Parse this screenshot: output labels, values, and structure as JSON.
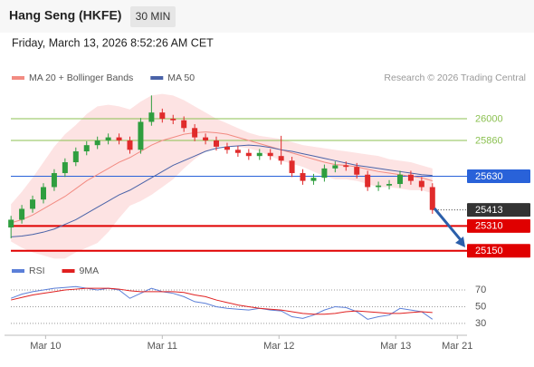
{
  "header": {
    "title": "Hang Seng (HKFE)",
    "interval": "30 MIN",
    "datetime": "Friday, March 13, 2026 8:52:26 AM CET"
  },
  "chart_data": [
    {
      "type": "candlestick",
      "credit": "Research © 2026 Trading Central",
      "up_color": "#2f9e3f",
      "down_color": "#e02b2b",
      "open": [
        25300,
        25350,
        25420,
        25480,
        25560,
        25650,
        25720,
        25790,
        25830,
        25860,
        25880,
        25860,
        25800,
        25980,
        26040,
        26000,
        25990,
        25940,
        25880,
        25860,
        25820,
        25800,
        25780,
        25760,
        25780,
        25760,
        25730,
        25650,
        25600,
        25620,
        25680,
        25700,
        25690,
        25640,
        25560,
        25570,
        25580,
        25640,
        25600,
        25560
      ],
      "high": [
        25375,
        25445,
        25505,
        25585,
        25675,
        25745,
        25815,
        25855,
        25885,
        25905,
        25905,
        25885,
        26005,
        26150,
        26065,
        26025,
        26015,
        25965,
        25905,
        25885,
        25845,
        25825,
        25805,
        25805,
        25805,
        25890,
        25755,
        25675,
        25645,
        25705,
        25725,
        25725,
        25715,
        25665,
        25595,
        25605,
        25665,
        25665,
        25625,
        25585
      ],
      "low": [
        25230,
        25325,
        25395,
        25455,
        25535,
        25625,
        25695,
        25765,
        25805,
        25835,
        25835,
        25775,
        25775,
        25955,
        25975,
        25965,
        25915,
        25855,
        25835,
        25795,
        25775,
        25755,
        25735,
        25735,
        25735,
        25705,
        25625,
        25575,
        25575,
        25595,
        25655,
        25665,
        25615,
        25535,
        25535,
        25545,
        25555,
        25575,
        25535,
        25388
      ],
      "close": [
        25350,
        25420,
        25480,
        25560,
        25650,
        25720,
        25790,
        25830,
        25860,
        25880,
        25860,
        25800,
        25980,
        26040,
        26000,
        25990,
        25940,
        25880,
        25860,
        25820,
        25800,
        25780,
        25760,
        25780,
        25760,
        25730,
        25650,
        25600,
        25620,
        25680,
        25700,
        25690,
        25640,
        25560,
        25570,
        25580,
        25640,
        25600,
        25560,
        25413
      ],
      "overlays": [
        {
          "name": "MA 20 + Bollinger Bands",
          "color": "#f28b82",
          "band_color": "#fde3e3",
          "values": [
            25330,
            25350,
            25380,
            25420,
            25460,
            25500,
            25550,
            25600,
            25640,
            25680,
            25720,
            25750,
            25790,
            25830,
            25860,
            25880,
            25900,
            25910,
            25915,
            25910,
            25900,
            25880,
            25860,
            25840,
            25820,
            25800,
            25780,
            25760,
            25740,
            25720,
            25705,
            25700,
            25690,
            25675,
            25660,
            25650,
            25640,
            25630,
            25620,
            25600
          ],
          "upper": [
            25450,
            25530,
            25620,
            25720,
            25820,
            25900,
            25960,
            26030,
            26080,
            26090,
            26080,
            26060,
            26110,
            26150,
            26160,
            26150,
            26120,
            26080,
            26040,
            26000,
            25970,
            25940,
            25910,
            25890,
            25880,
            25870,
            25850,
            25830,
            25820,
            25810,
            25800,
            25790,
            25780,
            25770,
            25760,
            25740,
            25730,
            25720,
            25700,
            25680
          ],
          "lower": [
            25210,
            25170,
            25140,
            25120,
            25100,
            25100,
            25140,
            25170,
            25200,
            25270,
            25360,
            25440,
            25470,
            25510,
            25560,
            25610,
            25680,
            25740,
            25790,
            25820,
            25830,
            25820,
            25810,
            25790,
            25760,
            25730,
            25710,
            25690,
            25660,
            25630,
            25610,
            25610,
            25600,
            25580,
            25560,
            25560,
            25550,
            25540,
            25540,
            25520
          ]
        },
        {
          "name": "MA 50",
          "color": "#4a63a8",
          "values": [
            25240,
            25245,
            25255,
            25270,
            25290,
            25320,
            25350,
            25390,
            25430,
            25470,
            25510,
            25540,
            25580,
            25620,
            25660,
            25700,
            25730,
            25760,
            25790,
            25810,
            25820,
            25825,
            25830,
            25825,
            25815,
            25800,
            25790,
            25775,
            25760,
            25745,
            25730,
            25715,
            25700,
            25690,
            25680,
            25670,
            25660,
            25650,
            25640,
            25635
          ]
        }
      ],
      "levels": [
        {
          "value": 26000,
          "color": "#8cc152",
          "box": false,
          "style": "solid"
        },
        {
          "value": 25860,
          "color": "#8cc152",
          "box": false,
          "style": "solid"
        },
        {
          "value": 25630,
          "color": "#2962d9",
          "box": true,
          "style": "solid"
        },
        {
          "value": 25413,
          "color": "#333333",
          "box": true,
          "style": "dotted"
        },
        {
          "value": 25310,
          "color": "#e00000",
          "box": true,
          "style": "thick"
        },
        {
          "value": 25150,
          "color": "#e00000",
          "box": true,
          "style": "thick"
        }
      ],
      "xlim": [
        -0.6,
        42.2
      ],
      "ylim": [
        25131,
        26181
      ],
      "xticks": [
        {
          "value": 3.2,
          "label": "Mar 10"
        },
        {
          "value": 14,
          "label": "Mar 11"
        },
        {
          "value": 24.8,
          "label": "Mar 12"
        },
        {
          "value": 35.6,
          "label": "Mar 13"
        },
        {
          "value": 41.3,
          "label": "Mar 21"
        }
      ]
    },
    {
      "type": "line",
      "series": [
        {
          "name": "RSI",
          "color": "#5b7fd8",
          "values": [
            60,
            65,
            68,
            70,
            72,
            73,
            74,
            72,
            70,
            72,
            70,
            60,
            66,
            72,
            68,
            66,
            62,
            56,
            54,
            50,
            48,
            47,
            46,
            48,
            46,
            45,
            38,
            36,
            40,
            46,
            50,
            49,
            44,
            35,
            38,
            40,
            48,
            46,
            44,
            35
          ]
        },
        {
          "name": "9MA",
          "color": "#e02020",
          "values": [
            58,
            61,
            64,
            66,
            68,
            70,
            71,
            72,
            72,
            72,
            71,
            69,
            68,
            68,
            68,
            68,
            67,
            64,
            62,
            58,
            55,
            52,
            50,
            48,
            47,
            46,
            44,
            42,
            41,
            41,
            42,
            44,
            45,
            44,
            43,
            42,
            42,
            43,
            44,
            43
          ]
        }
      ],
      "ylim": [
        18,
        78
      ],
      "yticks": [
        70,
        50,
        30
      ]
    }
  ]
}
